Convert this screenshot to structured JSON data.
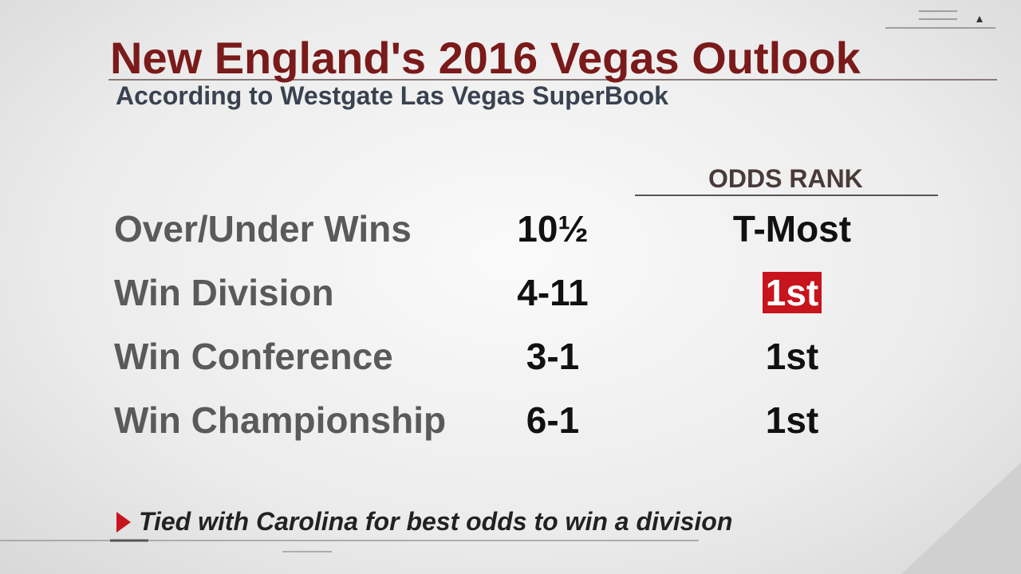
{
  "header": {
    "title": "New England's 2016 Vegas Outlook",
    "subtitle": "According to Westgate Las Vegas SuperBook"
  },
  "table": {
    "column_header": "ODDS RANK",
    "rows": [
      [
        "Over/Under Wins",
        "10½",
        "T-Most"
      ],
      [
        "Win Division",
        "4-11",
        "1st"
      ],
      [
        "Win Conference",
        "3-1",
        "1st"
      ],
      [
        "Win Championship",
        "6-1",
        "1st"
      ]
    ]
  },
  "footnote": "Tied with Carolina for best odds to win a division"
}
